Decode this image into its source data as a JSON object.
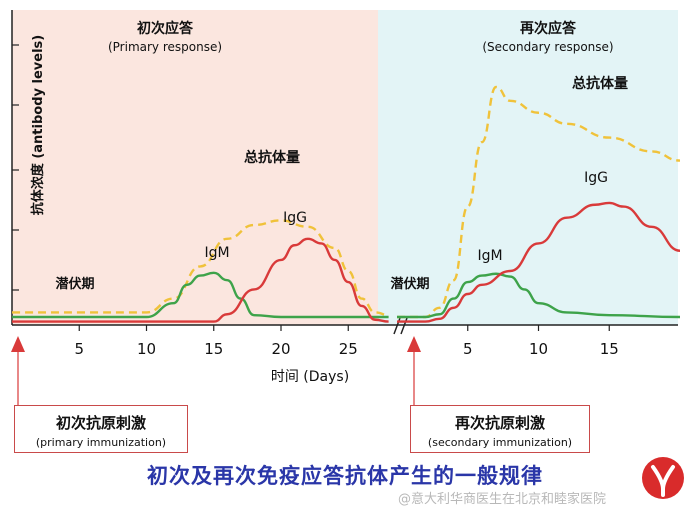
{
  "chart_data": {
    "type": "line",
    "ylabel": "抗体浓度",
    "ylabel_en": "(antibody levels)",
    "xlabel": "时间 (Days)",
    "phases": [
      {
        "title": "初次应答",
        "subtitle": "(Primary response)",
        "latent_label": "潜伏期",
        "xticks": [
          "5",
          "10",
          "15",
          "20",
          "25"
        ],
        "xlim": [
          0,
          28
        ],
        "series": [
          {
            "name": "总抗体量",
            "color": "#f0c23a",
            "dash": true,
            "x": [
              0,
              5,
              10,
              12,
              14,
              16,
              18,
              20,
              22,
              24,
              25,
              26,
              27,
              28
            ],
            "y": [
              5,
              5,
              5,
              20,
              55,
              85,
              100,
              105,
              98,
              75,
              50,
              20,
              5,
              2
            ]
          },
          {
            "name": "IgM",
            "color": "#3ea34a",
            "dash": false,
            "x": [
              0,
              5,
              10,
              12,
              13,
              14,
              15,
              16,
              17,
              18,
              20,
              25,
              28
            ],
            "y": [
              0,
              0,
              0,
              15,
              35,
              45,
              48,
              40,
              20,
              2,
              0,
              0,
              0
            ]
          },
          {
            "name": "IgG",
            "color": "#d93a3a",
            "dash": false,
            "x": [
              0,
              5,
              10,
              15,
              16,
              18,
              20,
              21,
              22,
              23,
              24,
              25,
              26,
              27,
              28
            ],
            "y": [
              -5,
              -5,
              -5,
              -5,
              3,
              30,
              62,
              78,
              85,
              80,
              62,
              38,
              12,
              -3,
              -5
            ]
          }
        ]
      },
      {
        "title": "再次应答",
        "subtitle": "(Secondary response)",
        "latent_label": "潜伏期",
        "xticks": [
          "5",
          "10",
          "15"
        ],
        "xlim": [
          0,
          20
        ],
        "series": [
          {
            "name": "总抗体量",
            "color": "#f0c23a",
            "dash": true,
            "x": [
              0,
              2,
              3,
              4,
              5,
              6,
              7,
              8,
              10,
              12,
              15,
              18,
              20
            ],
            "y": [
              0,
              0,
              10,
              40,
              120,
              190,
              250,
              235,
              222,
              210,
              195,
              180,
              170
            ]
          },
          {
            "name": "IgM",
            "color": "#3ea34a",
            "dash": false,
            "x": [
              0,
              2,
              3,
              4,
              5,
              6,
              7,
              8,
              9,
              10,
              12,
              15,
              20
            ],
            "y": [
              0,
              0,
              3,
              20,
              38,
              45,
              47,
              44,
              30,
              15,
              5,
              2,
              0
            ]
          },
          {
            "name": "IgG",
            "color": "#d93a3a",
            "dash": false,
            "x": [
              0,
              2,
              3,
              4,
              5,
              6,
              8,
              10,
              12,
              14,
              15,
              16,
              18,
              20
            ],
            "y": [
              -5,
              -5,
              -2,
              10,
              25,
              35,
              50,
              80,
              108,
              122,
              124,
              120,
              98,
              72
            ]
          }
        ]
      }
    ],
    "legend": "none",
    "grid": false
  },
  "stimulus": {
    "primary_cn": "初次抗原刺激",
    "primary_en": "(primary immunization)",
    "secondary_cn": "再次抗原刺激",
    "secondary_en": "(secondary immunization)",
    "arrow_color": "#d93a3a"
  },
  "caption": "初次及再次免疫应答抗体产生的一般规律",
  "watermark": "@意大利华商医生在北京和睦家医院",
  "colors": {
    "primary_bg": "#fbe6df",
    "secondary_bg": "#e3f4f6",
    "box_border": "#c94a4a",
    "caption": "#2a36a8"
  }
}
